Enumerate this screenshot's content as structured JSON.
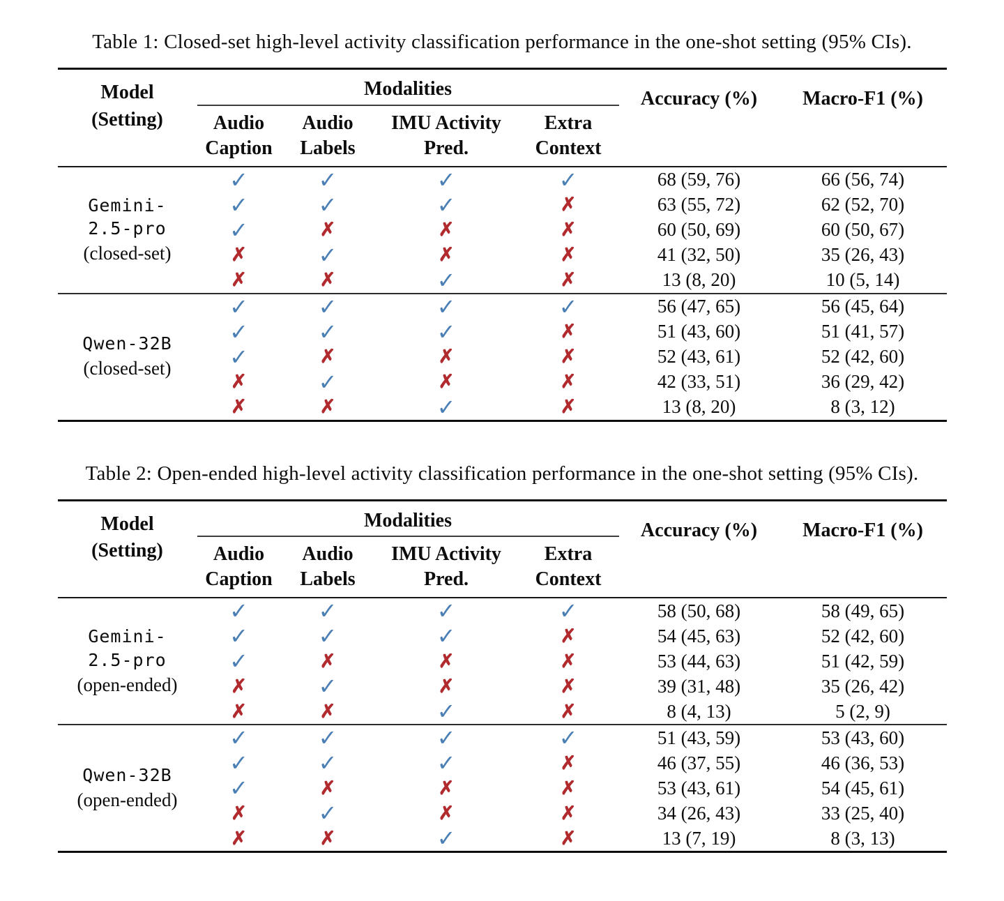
{
  "colors": {
    "check": "#4a7fb5",
    "cross": "#b02a2e",
    "rule": "#0d0d0d",
    "background": "#ffffff",
    "text": "#0d0d0d"
  },
  "glyphs": {
    "check": "✓",
    "cross": "✗"
  },
  "tables": [
    {
      "caption": "Table 1: Closed-set high-level activity classification performance in the one-shot setting (95% CIs).",
      "header": {
        "model_line1": "Model",
        "model_line2": "(Setting)",
        "modalities": "Modalities",
        "columns": [
          [
            "Audio",
            "Caption"
          ],
          [
            "Audio",
            "Labels"
          ],
          [
            "IMU Activity",
            "Pred."
          ],
          [
            "Extra",
            "Context"
          ]
        ],
        "accuracy": "Accuracy (%)",
        "macro_f1": "Macro-F1 (%)"
      },
      "blocks": [
        {
          "model_lines": [
            "Gemini-",
            "2.5-pro"
          ],
          "setting": "(closed-set)",
          "rows": [
            {
              "marks": [
                true,
                true,
                true,
                true
              ],
              "accuracy": "68 (59, 76)",
              "macro_f1": "66 (56, 74)"
            },
            {
              "marks": [
                true,
                true,
                true,
                false
              ],
              "accuracy": "63 (55, 72)",
              "macro_f1": "62 (52, 70)"
            },
            {
              "marks": [
                true,
                false,
                false,
                false
              ],
              "accuracy": "60 (50, 69)",
              "macro_f1": "60 (50, 67)"
            },
            {
              "marks": [
                false,
                true,
                false,
                false
              ],
              "accuracy": "41 (32, 50)",
              "macro_f1": "35 (26, 43)"
            },
            {
              "marks": [
                false,
                false,
                true,
                false
              ],
              "accuracy": "13 (8, 20)",
              "macro_f1": "10 (5, 14)"
            }
          ]
        },
        {
          "model_lines": [
            "Qwen-32B"
          ],
          "setting": "(closed-set)",
          "rows": [
            {
              "marks": [
                true,
                true,
                true,
                true
              ],
              "accuracy": "56 (47, 65)",
              "macro_f1": "56 (45, 64)"
            },
            {
              "marks": [
                true,
                true,
                true,
                false
              ],
              "accuracy": "51 (43, 60)",
              "macro_f1": "51 (41, 57)"
            },
            {
              "marks": [
                true,
                false,
                false,
                false
              ],
              "accuracy": "52 (43, 61)",
              "macro_f1": "52 (42, 60)"
            },
            {
              "marks": [
                false,
                true,
                false,
                false
              ],
              "accuracy": "42 (33, 51)",
              "macro_f1": "36 (29, 42)"
            },
            {
              "marks": [
                false,
                false,
                true,
                false
              ],
              "accuracy": "13 (8, 20)",
              "macro_f1": "8 (3, 12)"
            }
          ]
        }
      ]
    },
    {
      "caption": "Table 2: Open-ended high-level activity classification performance in the one-shot setting (95% CIs).",
      "header": {
        "model_line1": "Model",
        "model_line2": "(Setting)",
        "modalities": "Modalities",
        "columns": [
          [
            "Audio",
            "Caption"
          ],
          [
            "Audio",
            "Labels"
          ],
          [
            "IMU Activity",
            "Pred."
          ],
          [
            "Extra",
            "Context"
          ]
        ],
        "accuracy": "Accuracy (%)",
        "macro_f1": "Macro-F1 (%)"
      },
      "blocks": [
        {
          "model_lines": [
            "Gemini-",
            "2.5-pro"
          ],
          "setting": "(open-ended)",
          "rows": [
            {
              "marks": [
                true,
                true,
                true,
                true
              ],
              "accuracy": "58 (50, 68)",
              "macro_f1": "58 (49, 65)"
            },
            {
              "marks": [
                true,
                true,
                true,
                false
              ],
              "accuracy": "54 (45, 63)",
              "macro_f1": "52 (42, 60)"
            },
            {
              "marks": [
                true,
                false,
                false,
                false
              ],
              "accuracy": "53 (44, 63)",
              "macro_f1": "51 (42, 59)"
            },
            {
              "marks": [
                false,
                true,
                false,
                false
              ],
              "accuracy": "39 (31, 48)",
              "macro_f1": "35 (26, 42)"
            },
            {
              "marks": [
                false,
                false,
                true,
                false
              ],
              "accuracy": "8 (4, 13)",
              "macro_f1": "5 (2, 9)"
            }
          ]
        },
        {
          "model_lines": [
            "Qwen-32B"
          ],
          "setting": "(open-ended)",
          "rows": [
            {
              "marks": [
                true,
                true,
                true,
                true
              ],
              "accuracy": "51 (43, 59)",
              "macro_f1": "53 (43, 60)"
            },
            {
              "marks": [
                true,
                true,
                true,
                false
              ],
              "accuracy": "46 (37, 55)",
              "macro_f1": "46 (36, 53)"
            },
            {
              "marks": [
                true,
                false,
                false,
                false
              ],
              "accuracy": "53 (43, 61)",
              "macro_f1": "54 (45, 61)"
            },
            {
              "marks": [
                false,
                true,
                false,
                false
              ],
              "accuracy": "34 (26, 43)",
              "macro_f1": "33 (25, 40)"
            },
            {
              "marks": [
                false,
                false,
                true,
                false
              ],
              "accuracy": "13 (7, 19)",
              "macro_f1": "8 (3, 13)"
            }
          ]
        }
      ]
    }
  ]
}
